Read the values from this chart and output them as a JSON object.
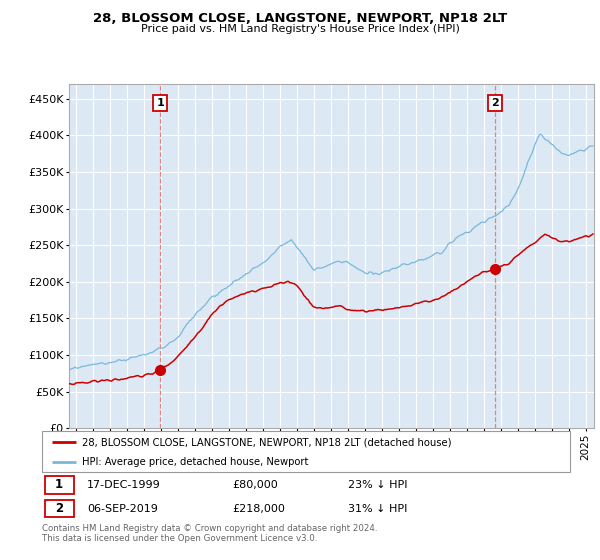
{
  "title": "28, BLOSSOM CLOSE, LANGSTONE, NEWPORT, NP18 2LT",
  "subtitle": "Price paid vs. HM Land Registry's House Price Index (HPI)",
  "background_color": "#ffffff",
  "plot_bg_color": "#dce9f5",
  "hpi_color": "#7ab8d9",
  "price_color": "#cc0000",
  "marker_color": "#cc0000",
  "vline_color": "#e88080",
  "grid_color": "#ffffff",
  "yticks": [
    0,
    50000,
    100000,
    150000,
    200000,
    250000,
    300000,
    350000,
    400000,
    450000
  ],
  "ytick_labels": [
    "£0",
    "£50K",
    "£100K",
    "£150K",
    "£200K",
    "£250K",
    "£300K",
    "£350K",
    "£400K",
    "£450K"
  ],
  "xmin": 1994.6,
  "xmax": 2025.5,
  "ymin": 0,
  "ymax": 470000,
  "sale1_x": 1999.96,
  "sale1_y": 80000,
  "sale1_label": "1",
  "sale1_date": "17-DEC-1999",
  "sale1_price": "£80,000",
  "sale1_hpi": "23% ↓ HPI",
  "sale2_x": 2019.68,
  "sale2_y": 218000,
  "sale2_label": "2",
  "sale2_date": "06-SEP-2019",
  "sale2_price": "£218,000",
  "sale2_hpi": "31% ↓ HPI",
  "legend_line1": "28, BLOSSOM CLOSE, LANGSTONE, NEWPORT, NP18 2LT (detached house)",
  "legend_line2": "HPI: Average price, detached house, Newport",
  "footnote": "Contains HM Land Registry data © Crown copyright and database right 2024.\nThis data is licensed under the Open Government Licence v3.0."
}
